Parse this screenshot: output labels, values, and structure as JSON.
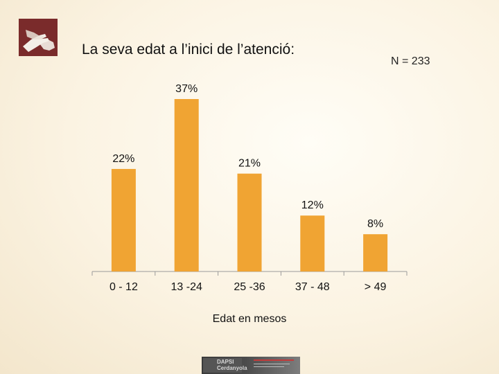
{
  "title": "La seva edat a l’inici de l’atenció:",
  "n_label": "N = 233",
  "footer": {
    "brand_line1": "DAPSI",
    "brand_line2": "Cerdanyola"
  },
  "colors": {
    "bar": "#f0a433",
    "axis": "#9a9a9a",
    "text": "#111111",
    "logo": "#7a2b2b"
  },
  "icons": {
    "header_logo": "hands-icon",
    "footer_logo": "dapsi-logo-icon"
  },
  "chart_data": {
    "type": "bar",
    "categories": [
      "0 - 12",
      "13 -24",
      "25 -36",
      "37 - 48",
      "> 49"
    ],
    "values": [
      22,
      37,
      21,
      12,
      8
    ],
    "data_labels": [
      "22%",
      "37%",
      "21%",
      "12%",
      "8%"
    ],
    "unit": "%",
    "xlabel": "Edat en mesos",
    "ylabel": "",
    "ylim": [
      0,
      37
    ],
    "grid": false,
    "legend": "none"
  }
}
